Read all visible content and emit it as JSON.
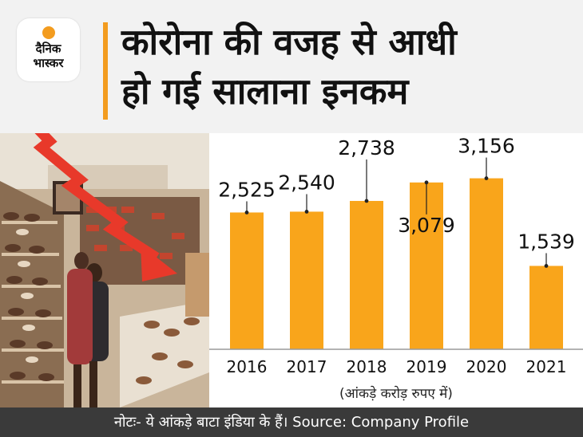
{
  "brand": {
    "line1": "दैनिक",
    "line2": "भास्कर",
    "sun_color": "#f39c1f"
  },
  "headline": {
    "text": "कोरोना की वजह से आधी\nहो गई सालाना इनकम",
    "accent_color": "#f39c1f"
  },
  "footer": {
    "note": "नोटः- ये आंकड़े बाटा इंडिया के हैं। Source: Company Profile"
  },
  "photo": {
    "arrow_color": "#e8392a"
  },
  "chart_data": {
    "type": "bar",
    "categories": [
      "2016",
      "2017",
      "2018",
      "2019",
      "2020",
      "2021"
    ],
    "values": [
      2525,
      2540,
      2738,
      3079,
      3156,
      1539
    ],
    "value_labels": [
      "2,525",
      "2,540",
      "2,738",
      "3,079",
      "3,156",
      "1,539"
    ],
    "unit_note": "(आंकड़े करोड़ रुपए में)",
    "bar_color": "#f9a51b",
    "ylim": [
      0,
      3400
    ],
    "grid": false
  }
}
